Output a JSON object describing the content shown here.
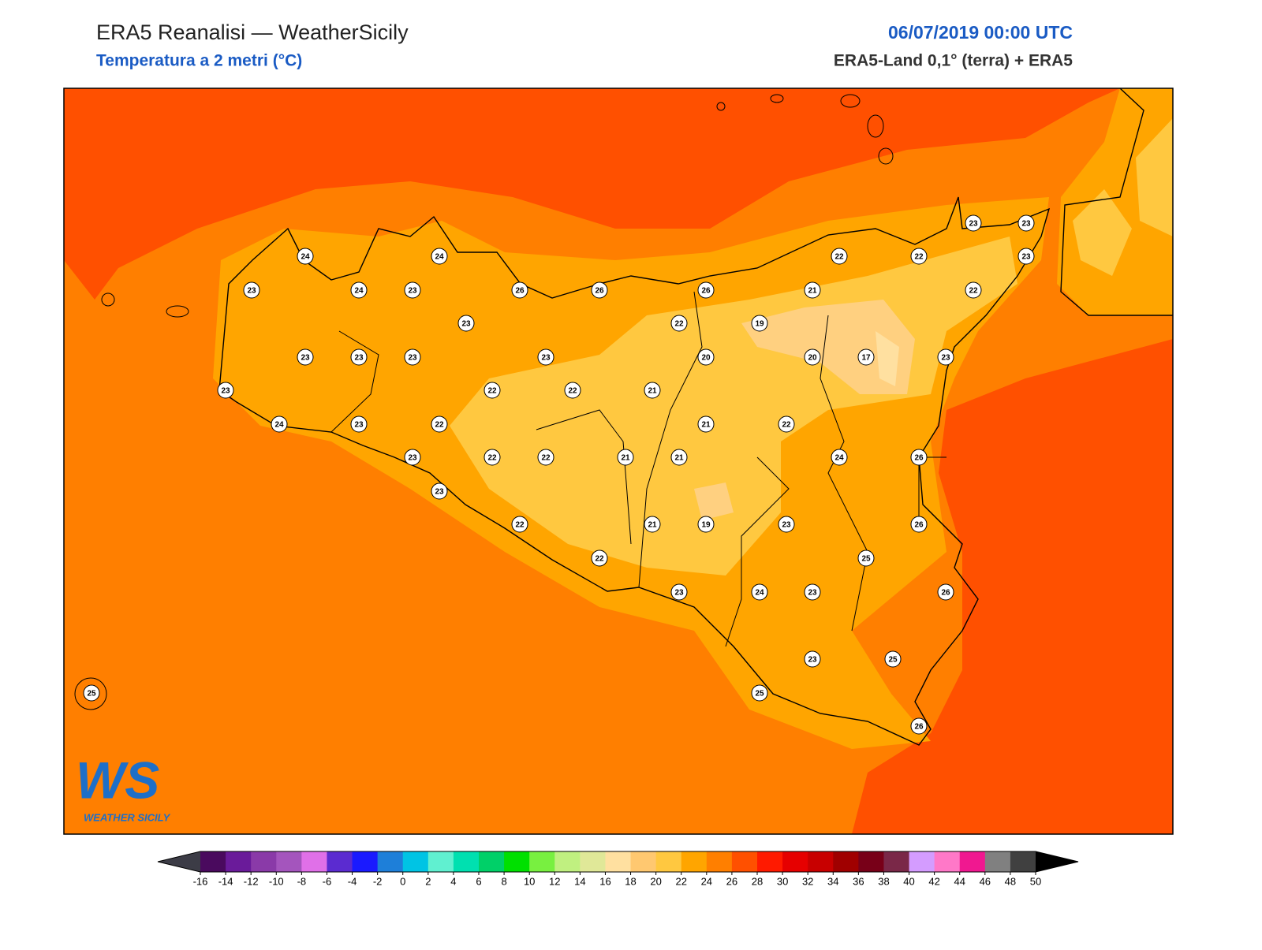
{
  "header": {
    "title": "ERA5 Reanalisi — WeatherSicily",
    "subtitle": "Temperatura a 2 metri (°C)",
    "date": "06/07/2019 00:00 UTC",
    "source": "ERA5-Land 0,1° (terra) + ERA5"
  },
  "map": {
    "stations": [
      24,
      24,
      23,
      24,
      23,
      26,
      26,
      26,
      22,
      22,
      23,
      23,
      23,
      21,
      22,
      23,
      22,
      19,
      23,
      23,
      23,
      23,
      20,
      20,
      17,
      23,
      23,
      22,
      22,
      21,
      24,
      23,
      22,
      21,
      22,
      23,
      22,
      22,
      21,
      21,
      24,
      26,
      23,
      22,
      21,
      19,
      23,
      26,
      25,
      22,
      23,
      24,
      23,
      26,
      23,
      25,
      25,
      25,
      26
    ]
  },
  "colorbar": {
    "ticks": [
      -16,
      -14,
      -12,
      -10,
      -8,
      -6,
      -4,
      -2,
      0,
      2,
      4,
      6,
      8,
      10,
      12,
      14,
      16,
      18,
      20,
      22,
      24,
      26,
      28,
      30,
      32,
      34,
      36,
      38,
      40,
      42,
      44,
      46,
      48,
      50
    ],
    "colors": [
      "#4a0a5e",
      "#6a1b9a",
      "#8a3aa8",
      "#a455bd",
      "#e070e8",
      "#5b2bd0",
      "#1a1aff",
      "#1e7fd9",
      "#00c4e4",
      "#60f0d0",
      "#00e0b0",
      "#00d068",
      "#00e000",
      "#78f040",
      "#c0f080",
      "#e0e898",
      "#ffe0a0",
      "#ffc870",
      "#ffc840",
      "#ffa500",
      "#ff7f00",
      "#ff5000",
      "#ff1a00",
      "#e60000",
      "#c80000",
      "#a00000",
      "#780018",
      "#7a2848",
      "#d49cff",
      "#ff78c8",
      "#f01890",
      "#808080",
      "#404040"
    ],
    "under_color": "#3c3c46",
    "over_color": "#000000"
  },
  "logo": {
    "mark": "WS",
    "name": "WEATHER SICILY"
  }
}
